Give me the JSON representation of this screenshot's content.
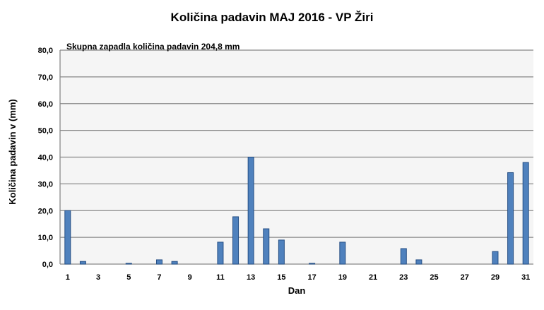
{
  "chart_data": {
    "type": "bar",
    "title": "Količina padavin MAJ 2016 - VP Žiri",
    "annotation": "Skupna zapadla količina padavin 204,8 mm",
    "xlabel": "Dan",
    "ylabel": "Količina padavin v  (mm)",
    "ylim": [
      0,
      80
    ],
    "yticks": [
      "0,0",
      "10,0",
      "20,0",
      "30,0",
      "40,0",
      "50,0",
      "60,0",
      "70,0",
      "80,0"
    ],
    "xticks": [
      "1",
      "3",
      "5",
      "7",
      "9",
      "11",
      "13",
      "15",
      "17",
      "19",
      "21",
      "23",
      "25",
      "27",
      "29",
      "31"
    ],
    "grid": true,
    "bar_color": "#4f81bd",
    "bar_edge": "#254f85",
    "plot_bg": "#f5f5f5",
    "categories": [
      1,
      2,
      3,
      4,
      5,
      6,
      7,
      8,
      9,
      10,
      11,
      12,
      13,
      14,
      15,
      16,
      17,
      18,
      19,
      20,
      21,
      22,
      23,
      24,
      25,
      26,
      27,
      28,
      29,
      30,
      31
    ],
    "values": [
      20.0,
      1.0,
      0,
      0,
      0.3,
      0,
      1.6,
      1.0,
      0,
      0,
      8.2,
      17.7,
      40.0,
      13.2,
      9.0,
      0,
      0.3,
      0,
      8.2,
      0,
      0,
      0,
      5.8,
      1.6,
      0,
      0,
      0,
      0,
      4.7,
      34.2,
      38.0
    ]
  }
}
